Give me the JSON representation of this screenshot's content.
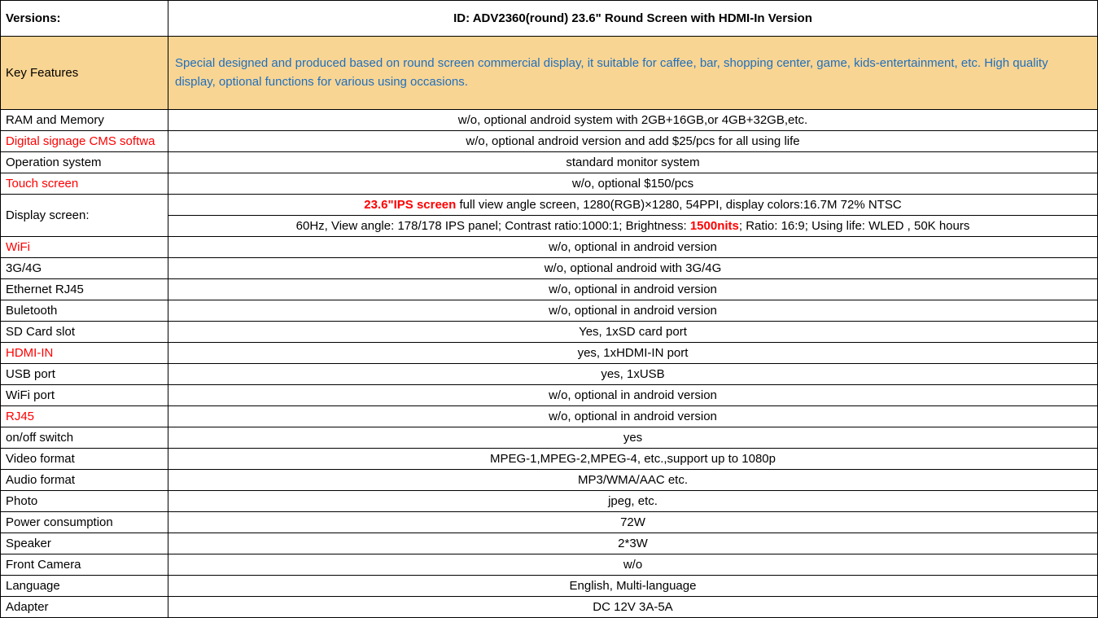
{
  "header": {
    "label": "Versions:",
    "value_prefix": "ID: ADV2360(round)   23.6\" Round Screen with HDMI-In Version"
  },
  "features": {
    "label": "Key Features",
    "value": "Special designed and produced based on round screen commercial display, it suitable for caffee, bar, shopping center, game, kids-entertainment, etc. High quality display, optional functions for various using occasions."
  },
  "display": {
    "label": "Display screen:",
    "line1_red": "23.6\"IPS screen",
    "line1_rest": "  full view angle screen, 1280(RGB)×1280, 54PPI, display colors:16.7M   72% NTSC",
    "line2_before": "60Hz, View angle: 178/178 IPS panel; Contrast ratio:1000:1; Brightness: ",
    "line2_red": "1500nits",
    "line2_after": "; Ratio: 16:9; Using life: WLED , 50K hours"
  },
  "rows": [
    {
      "label": "RAM and Memory",
      "label_red": false,
      "value": "w/o, optional android system with 2GB+16GB,or 4GB+32GB,etc."
    },
    {
      "label": "Digital signage CMS softwa",
      "label_red": true,
      "value": "w/o, optional android version and add $25/pcs for all using life"
    },
    {
      "label": "Operation system",
      "label_red": false,
      "value": "standard monitor system"
    },
    {
      "label": "Touch screen",
      "label_red": true,
      "value": "w/o, optional $150/pcs"
    }
  ],
  "rows2": [
    {
      "label": "WiFi",
      "label_red": true,
      "value": "w/o, optional in android version"
    },
    {
      "label": "3G/4G",
      "label_red": false,
      "value": "w/o, optional android with 3G/4G"
    },
    {
      "label": "Ethernet RJ45",
      "label_red": false,
      "value": "w/o, optional in android version"
    },
    {
      "label": "Buletooth",
      "label_red": false,
      "value": "w/o, optional in android version"
    },
    {
      "label": "SD Card slot",
      "label_red": false,
      "value": "Yes, 1xSD card port"
    },
    {
      "label": "HDMI-IN",
      "label_red": true,
      "value": "yes, 1xHDMI-IN port"
    },
    {
      "label": "USB port",
      "label_red": false,
      "value": "yes, 1xUSB"
    },
    {
      "label": "WiFi port",
      "label_red": false,
      "value": "w/o, optional in android version"
    },
    {
      "label": "RJ45",
      "label_red": true,
      "value": "w/o, optional in android version"
    },
    {
      "label": "on/off switch",
      "label_red": false,
      "value": "yes"
    },
    {
      "label": "Video format",
      "label_red": false,
      "value": "MPEG-1,MPEG-2,MPEG-4, etc.,support up to 1080p"
    },
    {
      "label": "Audio format",
      "label_red": false,
      "value": "MP3/WMA/AAC etc."
    },
    {
      "label": "Photo",
      "label_red": false,
      "value": "jpeg, etc."
    },
    {
      "label": "Power consumption",
      "label_red": false,
      "value": "72W"
    },
    {
      "label": "Speaker",
      "label_red": false,
      "value": "2*3W"
    },
    {
      "label": "Front Camera",
      "label_red": false,
      "value": "w/o"
    },
    {
      "label": "Language",
      "label_red": false,
      "value": "English, Multi-language"
    },
    {
      "label": "Adapter",
      "label_red": false,
      "value": "DC 12V 3A-5A"
    }
  ]
}
